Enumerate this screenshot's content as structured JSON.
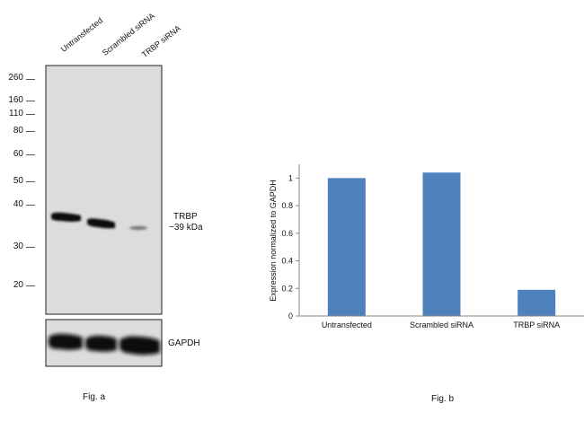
{
  "blot": {
    "lanes": [
      "Untransfected",
      "Scrambled siRNA",
      "TRBP siRNA"
    ],
    "markers": [
      "260",
      "160",
      "110",
      "80",
      "60",
      "50",
      "40",
      "30",
      "20"
    ],
    "band_label": "TRBP",
    "band_size": "~39 kDa",
    "loading_label": "GAPDH",
    "caption": "Fig. a"
  },
  "chart_data": {
    "type": "bar",
    "categories": [
      "Untransfected",
      "Scrambled siRNA",
      "TRBP siRNA"
    ],
    "values": [
      1.0,
      1.04,
      0.19
    ],
    "title": "",
    "xlabel": "",
    "ylabel": "Expression  normalized to GAPDH",
    "ylim": [
      0,
      1.1
    ],
    "yticks": [
      "0",
      "0.2",
      "0.4",
      "0.6",
      "0.8",
      "1"
    ],
    "grid": false,
    "legend": "none",
    "bar_color": "#4f81bd",
    "caption": "Fig. b"
  }
}
